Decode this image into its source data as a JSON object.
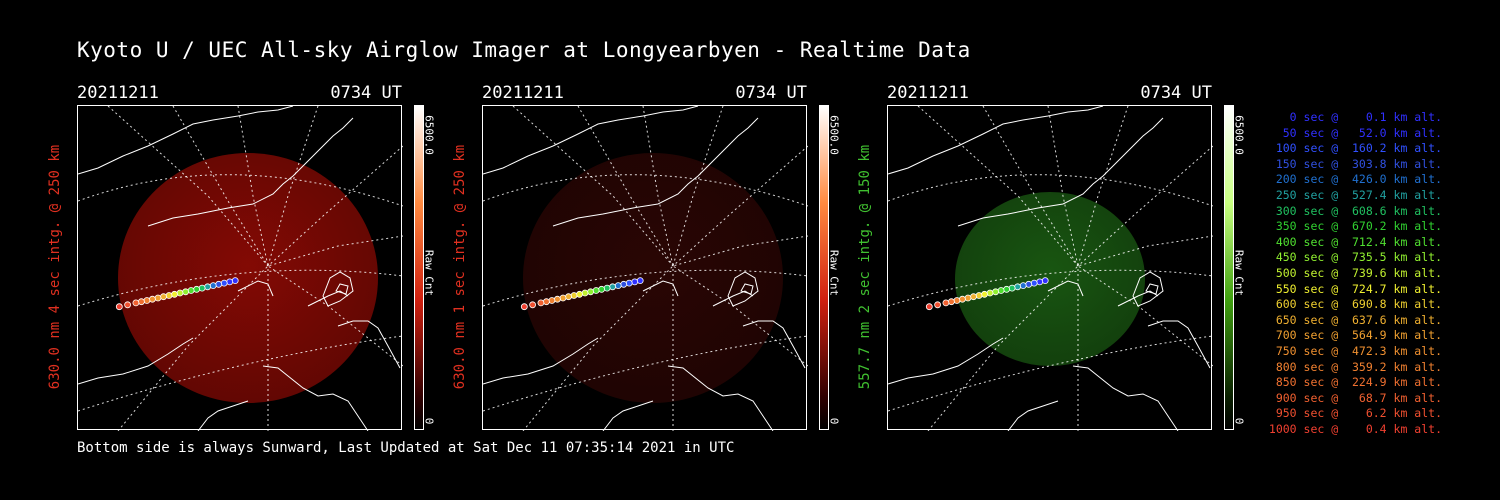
{
  "title": "Kyoto U / UEC All-sky Airglow Imager at Longyearbyen - Realtime Data",
  "footer": "Bottom side is always Sunward, Last Updated at Sat Dec 11 07:35:14 2021 in UTC",
  "panels": [
    {
      "date": "20211211",
      "time": "0734 UT",
      "ylabel": "630.0 nm 4 sec intg. @ 250 km",
      "label_color": "#e03020",
      "glow_color": "#8a0a04",
      "glow_opacity": 0.95,
      "colorbar_max": "6500.0",
      "colorbar_unit": "Raw Cnt",
      "colorbar_min": "0",
      "colorbar_colors": [
        "#ffffff",
        "#ff8a40",
        "#d02010",
        "#300000"
      ]
    },
    {
      "date": "20211211",
      "time": "0734 UT",
      "ylabel": "630.0 nm 1 sec intg. @ 250 km",
      "label_color": "#e03020",
      "glow_color": "#2c0604",
      "glow_opacity": 0.95,
      "colorbar_max": "6500.0",
      "colorbar_unit": "Raw Cnt",
      "colorbar_min": "0",
      "colorbar_colors": [
        "#ffffff",
        "#ff8a40",
        "#d02010",
        "#300000"
      ]
    },
    {
      "date": "20211211",
      "time": "0734 UT",
      "ylabel": "557.7 nm 2 sec intg. @ 150 km",
      "label_color": "#40c030",
      "glow_color": "#1a5a12",
      "glow_opacity": 0.95,
      "colorbar_max": "6500.0",
      "colorbar_unit": "Raw Cnt",
      "colorbar_min": "0",
      "colorbar_colors": [
        "#ffffff",
        "#c8ff80",
        "#40a010",
        "#0a2000"
      ]
    }
  ],
  "trajectory": [
    {
      "label": "   0 sec @    0.1 km alt.",
      "color": "#3030ff"
    },
    {
      "label": "  50 sec @   52.0 km alt.",
      "color": "#3030ff"
    },
    {
      "label": " 100 sec @  160.2 km alt.",
      "color": "#3050ff"
    },
    {
      "label": " 150 sec @  303.8 km alt.",
      "color": "#3050e0"
    },
    {
      "label": " 200 sec @  426.0 km alt.",
      "color": "#2070d0"
    },
    {
      "label": " 250 sec @  527.4 km alt.",
      "color": "#20a0a0"
    },
    {
      "label": " 300 sec @  608.6 km alt.",
      "color": "#20c060"
    },
    {
      "label": " 350 sec @  670.2 km alt.",
      "color": "#30d030"
    },
    {
      "label": " 400 sec @  712.4 km alt.",
      "color": "#50e030"
    },
    {
      "label": " 450 sec @  735.5 km alt.",
      "color": "#90f030"
    },
    {
      "label": " 500 sec @  739.6 km alt.",
      "color": "#c0f030"
    },
    {
      "label": " 550 sec @  724.7 km alt.",
      "color": "#f0f030"
    },
    {
      "label": " 600 sec @  690.8 km alt.",
      "color": "#f0d030"
    },
    {
      "label": " 650 sec @  637.6 km alt.",
      "color": "#f0b030"
    },
    {
      "label": " 700 sec @  564.9 km alt.",
      "color": "#f0a030"
    },
    {
      "label": " 750 sec @  472.3 km alt.",
      "color": "#f09030"
    },
    {
      "label": " 800 sec @  359.2 km alt.",
      "color": "#f08030"
    },
    {
      "label": " 850 sec @  224.9 km alt.",
      "color": "#f07030"
    },
    {
      "label": " 900 sec @   68.7 km alt.",
      "color": "#f06030"
    },
    {
      "label": " 950 sec @    6.2 km alt.",
      "color": "#f05030"
    },
    {
      "label": "1000 sec @    0.4 km alt.",
      "color": "#f04030"
    }
  ]
}
